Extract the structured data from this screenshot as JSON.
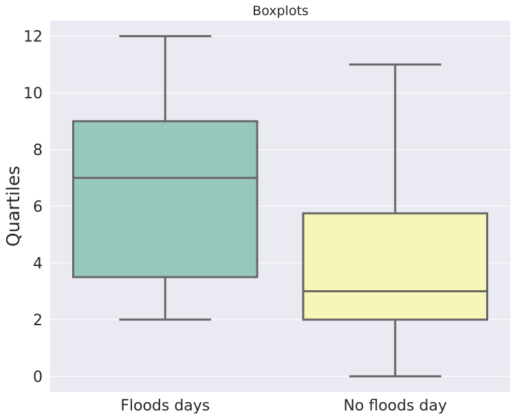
{
  "chart_data": {
    "type": "boxplot",
    "title": "Boxplots",
    "xlabel": "",
    "ylabel": "Quartiles",
    "ylim": [
      -0.55,
      12.55
    ],
    "yticks": [
      0,
      2,
      4,
      6,
      8,
      10,
      12
    ],
    "grid": true,
    "background": "#eaeaf2",
    "grid_color": "#ffffff",
    "line_color": "#666666",
    "categories": [
      "Floods days",
      "No floods day"
    ],
    "boxes": [
      {
        "category": "Floods days",
        "whisker_low": 2,
        "q1": 3.5,
        "median": 7,
        "q3": 9,
        "whisker_high": 12,
        "color": "#96c8be"
      },
      {
        "category": "No floods day",
        "whisker_low": 0,
        "q1": 2,
        "median": 3,
        "q3": 5.75,
        "whisker_high": 11,
        "color": "#f6f6b9"
      }
    ]
  }
}
